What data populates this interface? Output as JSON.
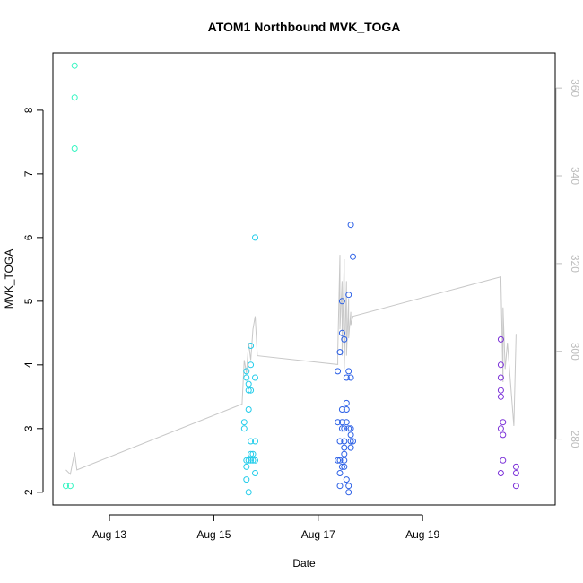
{
  "chart_data": {
    "type": "scatter",
    "title": "ATOM1 Northbound MVK_TOGA",
    "xlabel": "Date",
    "ylabel": "MVK_TOGA",
    "x_axis": {
      "type": "date",
      "range": [
        "2023-08-11T22:00",
        "2023-08-21T13:00"
      ],
      "ticks": [
        {
          "value": "2023-08-13",
          "label": "Aug 13"
        },
        {
          "value": "2023-08-15",
          "label": "Aug 15"
        },
        {
          "value": "2023-08-17",
          "label": "Aug 17"
        },
        {
          "value": "2023-08-19",
          "label": "Aug 19"
        }
      ]
    },
    "y_axis": {
      "range": [
        1.8,
        8.9
      ],
      "ticks": [
        2,
        3,
        4,
        5,
        6,
        7,
        8
      ]
    },
    "y2_axis": {
      "range": [
        265,
        368
      ],
      "ticks": [
        280,
        300,
        320,
        340,
        360
      ],
      "color": "#bdbdbd"
    },
    "grid": false,
    "series": [
      {
        "color": "#33f5c1",
        "points": [
          {
            "x": "2023-08-12T04:00",
            "y": 2.1
          },
          {
            "x": "2023-08-12T06:00",
            "y": 2.1
          },
          {
            "x": "2023-08-12T08:00",
            "y": 7.4
          },
          {
            "x": "2023-08-12T08:00",
            "y": 8.2
          },
          {
            "x": "2023-08-12T08:00",
            "y": 8.7
          }
        ]
      },
      {
        "color": "#22ccea",
        "points": [
          {
            "x": "2023-08-15T14:00",
            "y": 3.0
          },
          {
            "x": "2023-08-15T14:00",
            "y": 3.1
          },
          {
            "x": "2023-08-15T15:00",
            "y": 2.2
          },
          {
            "x": "2023-08-15T15:00",
            "y": 2.4
          },
          {
            "x": "2023-08-15T15:00",
            "y": 2.5
          },
          {
            "x": "2023-08-15T15:00",
            "y": 3.8
          },
          {
            "x": "2023-08-15T15:00",
            "y": 3.9
          },
          {
            "x": "2023-08-15T16:00",
            "y": 2.0
          },
          {
            "x": "2023-08-15T16:00",
            "y": 2.5
          },
          {
            "x": "2023-08-15T16:00",
            "y": 3.3
          },
          {
            "x": "2023-08-15T16:00",
            "y": 3.6
          },
          {
            "x": "2023-08-15T16:00",
            "y": 3.7
          },
          {
            "x": "2023-08-15T17:00",
            "y": 2.5
          },
          {
            "x": "2023-08-15T17:00",
            "y": 2.6
          },
          {
            "x": "2023-08-15T17:00",
            "y": 2.8
          },
          {
            "x": "2023-08-15T17:00",
            "y": 3.6
          },
          {
            "x": "2023-08-15T17:00",
            "y": 4.0
          },
          {
            "x": "2023-08-15T17:00",
            "y": 4.3
          },
          {
            "x": "2023-08-15T18:00",
            "y": 2.6
          },
          {
            "x": "2023-08-15T18:00",
            "y": 2.5
          },
          {
            "x": "2023-08-15T19:00",
            "y": 2.3
          },
          {
            "x": "2023-08-15T19:00",
            "y": 2.5
          },
          {
            "x": "2023-08-15T19:00",
            "y": 2.8
          },
          {
            "x": "2023-08-15T19:00",
            "y": 3.8
          },
          {
            "x": "2023-08-15T19:00",
            "y": 6.0
          }
        ]
      },
      {
        "color": "#2a5fe6",
        "points": [
          {
            "x": "2023-08-17T09:00",
            "y": 2.5
          },
          {
            "x": "2023-08-17T09:00",
            "y": 3.1
          },
          {
            "x": "2023-08-17T09:00",
            "y": 3.9
          },
          {
            "x": "2023-08-17T10:00",
            "y": 2.3
          },
          {
            "x": "2023-08-17T10:00",
            "y": 2.5
          },
          {
            "x": "2023-08-17T10:00",
            "y": 2.8
          },
          {
            "x": "2023-08-17T10:00",
            "y": 4.2
          },
          {
            "x": "2023-08-17T10:00",
            "y": 2.1
          },
          {
            "x": "2023-08-17T11:00",
            "y": 2.4
          },
          {
            "x": "2023-08-17T11:00",
            "y": 3.0
          },
          {
            "x": "2023-08-17T11:00",
            "y": 3.1
          },
          {
            "x": "2023-08-17T11:00",
            "y": 4.5
          },
          {
            "x": "2023-08-17T11:00",
            "y": 5.0
          },
          {
            "x": "2023-08-17T11:00",
            "y": 3.3
          },
          {
            "x": "2023-08-17T12:00",
            "y": 2.4
          },
          {
            "x": "2023-08-17T12:00",
            "y": 2.5
          },
          {
            "x": "2023-08-17T12:00",
            "y": 2.6
          },
          {
            "x": "2023-08-17T12:00",
            "y": 2.7
          },
          {
            "x": "2023-08-17T12:00",
            "y": 2.8
          },
          {
            "x": "2023-08-17T12:00",
            "y": 3.0
          },
          {
            "x": "2023-08-17T12:00",
            "y": 4.4
          },
          {
            "x": "2023-08-17T13:00",
            "y": 2.2
          },
          {
            "x": "2023-08-17T13:00",
            "y": 3.1
          },
          {
            "x": "2023-08-17T13:00",
            "y": 3.3
          },
          {
            "x": "2023-08-17T13:00",
            "y": 3.4
          },
          {
            "x": "2023-08-17T13:00",
            "y": 3.8
          },
          {
            "x": "2023-08-17T14:00",
            "y": 2.0
          },
          {
            "x": "2023-08-17T14:00",
            "y": 2.1
          },
          {
            "x": "2023-08-17T14:00",
            "y": 3.0
          },
          {
            "x": "2023-08-17T14:00",
            "y": 3.9
          },
          {
            "x": "2023-08-17T14:00",
            "y": 5.1
          },
          {
            "x": "2023-08-17T15:00",
            "y": 2.7
          },
          {
            "x": "2023-08-17T15:00",
            "y": 2.8
          },
          {
            "x": "2023-08-17T15:00",
            "y": 2.9
          },
          {
            "x": "2023-08-17T15:00",
            "y": 3.0
          },
          {
            "x": "2023-08-17T15:00",
            "y": 3.8
          },
          {
            "x": "2023-08-17T15:00",
            "y": 6.2
          },
          {
            "x": "2023-08-17T16:00",
            "y": 2.8
          },
          {
            "x": "2023-08-17T16:00",
            "y": 5.7
          }
        ]
      },
      {
        "color": "#7a2fd8",
        "points": [
          {
            "x": "2023-08-20T12:00",
            "y": 2.3
          },
          {
            "x": "2023-08-20T12:00",
            "y": 3.0
          },
          {
            "x": "2023-08-20T12:00",
            "y": 3.5
          },
          {
            "x": "2023-08-20T12:00",
            "y": 3.6
          },
          {
            "x": "2023-08-20T12:00",
            "y": 3.8
          },
          {
            "x": "2023-08-20T12:00",
            "y": 4.0
          },
          {
            "x": "2023-08-20T12:00",
            "y": 4.4
          },
          {
            "x": "2023-08-20T13:00",
            "y": 2.5
          },
          {
            "x": "2023-08-20T13:00",
            "y": 2.9
          },
          {
            "x": "2023-08-20T13:00",
            "y": 3.1
          },
          {
            "x": "2023-08-20T19:00",
            "y": 2.1
          },
          {
            "x": "2023-08-20T19:00",
            "y": 2.3
          },
          {
            "x": "2023-08-20T19:00",
            "y": 2.4
          }
        ]
      }
    ],
    "secondary_line": {
      "color": "#c8c8c8",
      "axis": "y2",
      "points": [
        {
          "x": "2023-08-12T04:00",
          "y": 273
        },
        {
          "x": "2023-08-12T06:00",
          "y": 272
        },
        {
          "x": "2023-08-12T08:00",
          "y": 277
        },
        {
          "x": "2023-08-12T09:00",
          "y": 273
        },
        {
          "x": "2023-08-15T13:00",
          "y": 288
        },
        {
          "x": "2023-08-15T14:00",
          "y": 298
        },
        {
          "x": "2023-08-15T15:00",
          "y": 295
        },
        {
          "x": "2023-08-15T16:00",
          "y": 302
        },
        {
          "x": "2023-08-15T17:00",
          "y": 298
        },
        {
          "x": "2023-08-15T18:00",
          "y": 305
        },
        {
          "x": "2023-08-15T19:00",
          "y": 308
        },
        {
          "x": "2023-08-15T20:00",
          "y": 299
        },
        {
          "x": "2023-08-17T09:00",
          "y": 297
        },
        {
          "x": "2023-08-17T09:00",
          "y": 300
        },
        {
          "x": "2023-08-17T10:00",
          "y": 322
        },
        {
          "x": "2023-08-17T10:00",
          "y": 305
        },
        {
          "x": "2023-08-17T11:00",
          "y": 316
        },
        {
          "x": "2023-08-17T11:00",
          "y": 299
        },
        {
          "x": "2023-08-17T12:00",
          "y": 321
        },
        {
          "x": "2023-08-17T12:00",
          "y": 296
        },
        {
          "x": "2023-08-17T13:00",
          "y": 316
        },
        {
          "x": "2023-08-17T13:00",
          "y": 299
        },
        {
          "x": "2023-08-17T14:00",
          "y": 312
        },
        {
          "x": "2023-08-17T14:00",
          "y": 303
        },
        {
          "x": "2023-08-17T15:00",
          "y": 309
        },
        {
          "x": "2023-08-17T15:00",
          "y": 306
        },
        {
          "x": "2023-08-17T16:00",
          "y": 308
        },
        {
          "x": "2023-08-20T12:00",
          "y": 317
        },
        {
          "x": "2023-08-20T13:00",
          "y": 293
        },
        {
          "x": "2023-08-20T13:00",
          "y": 310
        },
        {
          "x": "2023-08-20T14:00",
          "y": 296
        },
        {
          "x": "2023-08-20T15:00",
          "y": 302
        },
        {
          "x": "2023-08-20T18:00",
          "y": 283
        },
        {
          "x": "2023-08-20T19:00",
          "y": 304
        }
      ]
    }
  }
}
